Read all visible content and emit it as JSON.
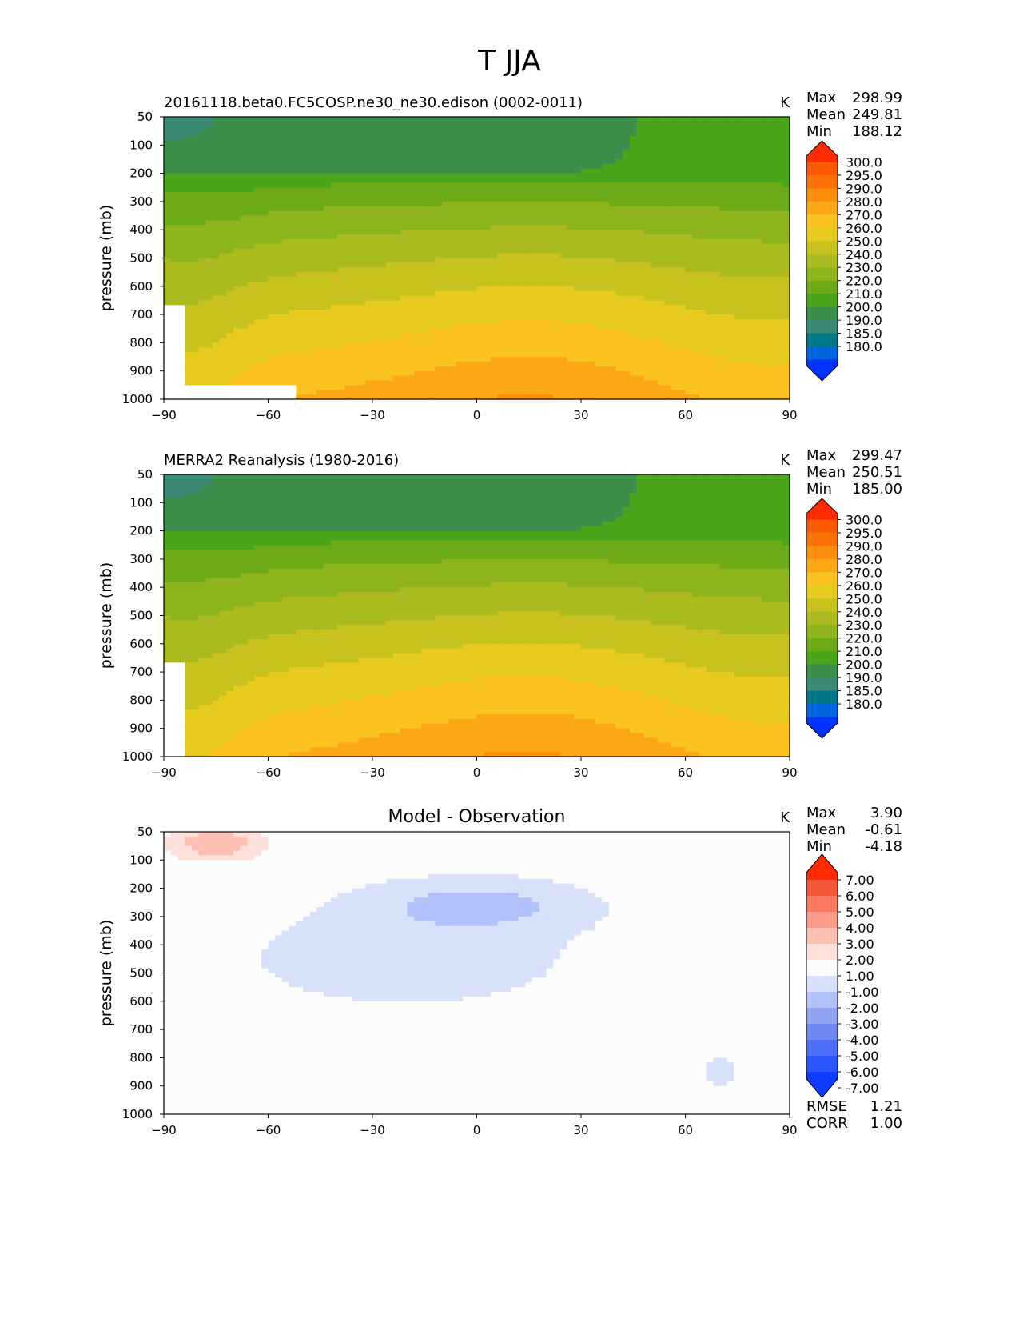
{
  "page": {
    "title": "T JJA"
  },
  "colors": {
    "abs_levels": [
      "#0033ff",
      "#0066dd",
      "#00788a",
      "#3a8a76",
      "#3b8f4a",
      "#4aa51a",
      "#6daa18",
      "#8db51b",
      "#abbb1f",
      "#c8c21e",
      "#e6ca1e",
      "#fbc31f",
      "#fca816",
      "#fd8d0c",
      "#fd7205",
      "#fd5a02",
      "#ff2a00"
    ],
    "diff_levels": [
      "#0d3bff",
      "#2b55ff",
      "#4d6ff8",
      "#6f88f2",
      "#8fa3f0",
      "#b2c1f9",
      "#d8e1fa",
      "#fcfcfc",
      "#fde0da",
      "#fcc0b2",
      "#fc9c88",
      "#f9785e",
      "#f55739",
      "#ff2a00"
    ]
  },
  "chart_data": [
    {
      "type": "contour",
      "title": "20161118.beta0.FC5COSP.ne30_ne30.edison (0002-0011)",
      "units": "K",
      "ylabel": "pressure (mb)",
      "xlim": [
        -90,
        90
      ],
      "ylim": [
        1000,
        50
      ],
      "x_ticks": [
        "−90",
        "−60",
        "−30",
        "0",
        "30",
        "60",
        "90"
      ],
      "y_ticks": [
        "50",
        "100",
        "200",
        "300",
        "400",
        "500",
        "600",
        "700",
        "800",
        "900",
        "1000"
      ],
      "stats": [
        [
          "Max",
          "298.99"
        ],
        [
          "Mean",
          "249.81"
        ],
        [
          "Min",
          "188.12"
        ]
      ],
      "colorbar": [
        "300.0",
        "295.0",
        "290.0",
        "280.0",
        "270.0",
        "260.0",
        "250.0",
        "240.0",
        "230.0",
        "220.0",
        "210.0",
        "200.0",
        "190.0",
        "185.0",
        "180.0"
      ],
      "field": "model"
    },
    {
      "type": "contour",
      "title": "MERRA2 Reanalysis (1980-2016)",
      "units": "K",
      "ylabel": "pressure (mb)",
      "xlim": [
        -90,
        90
      ],
      "ylim": [
        1000,
        50
      ],
      "x_ticks": [
        "−90",
        "−60",
        "−30",
        "0",
        "30",
        "60",
        "90"
      ],
      "y_ticks": [
        "50",
        "100",
        "200",
        "300",
        "400",
        "500",
        "600",
        "700",
        "800",
        "900",
        "1000"
      ],
      "stats": [
        [
          "Max",
          "299.47"
        ],
        [
          "Mean",
          "250.51"
        ],
        [
          "Min",
          "185.00"
        ]
      ],
      "colorbar": [
        "300.0",
        "295.0",
        "290.0",
        "280.0",
        "270.0",
        "260.0",
        "250.0",
        "240.0",
        "230.0",
        "220.0",
        "210.0",
        "200.0",
        "190.0",
        "185.0",
        "180.0"
      ],
      "field": "obs"
    },
    {
      "type": "contour",
      "title": "Model - Observation",
      "units": "K",
      "ylabel": "pressure (mb)",
      "xlim": [
        -90,
        90
      ],
      "ylim": [
        1000,
        50
      ],
      "x_ticks": [
        "−90",
        "−60",
        "−30",
        "0",
        "30",
        "60",
        "90"
      ],
      "y_ticks": [
        "50",
        "100",
        "200",
        "300",
        "400",
        "500",
        "600",
        "700",
        "800",
        "900",
        "1000"
      ],
      "stats": [
        [
          "Max",
          "3.90"
        ],
        [
          "Mean",
          "-0.61"
        ],
        [
          "Min",
          "-4.18"
        ]
      ],
      "colorbar": [
        "7.00",
        "6.00",
        "5.00",
        "4.00",
        "3.00",
        "2.00",
        "1.00",
        "-1.00",
        "-2.00",
        "-3.00",
        "-4.00",
        "-5.00",
        "-6.00",
        "-7.00"
      ],
      "extra_stats": [
        [
          "RMSE",
          "1.21"
        ],
        [
          "CORR",
          "1.00"
        ]
      ],
      "field": "diff"
    }
  ]
}
